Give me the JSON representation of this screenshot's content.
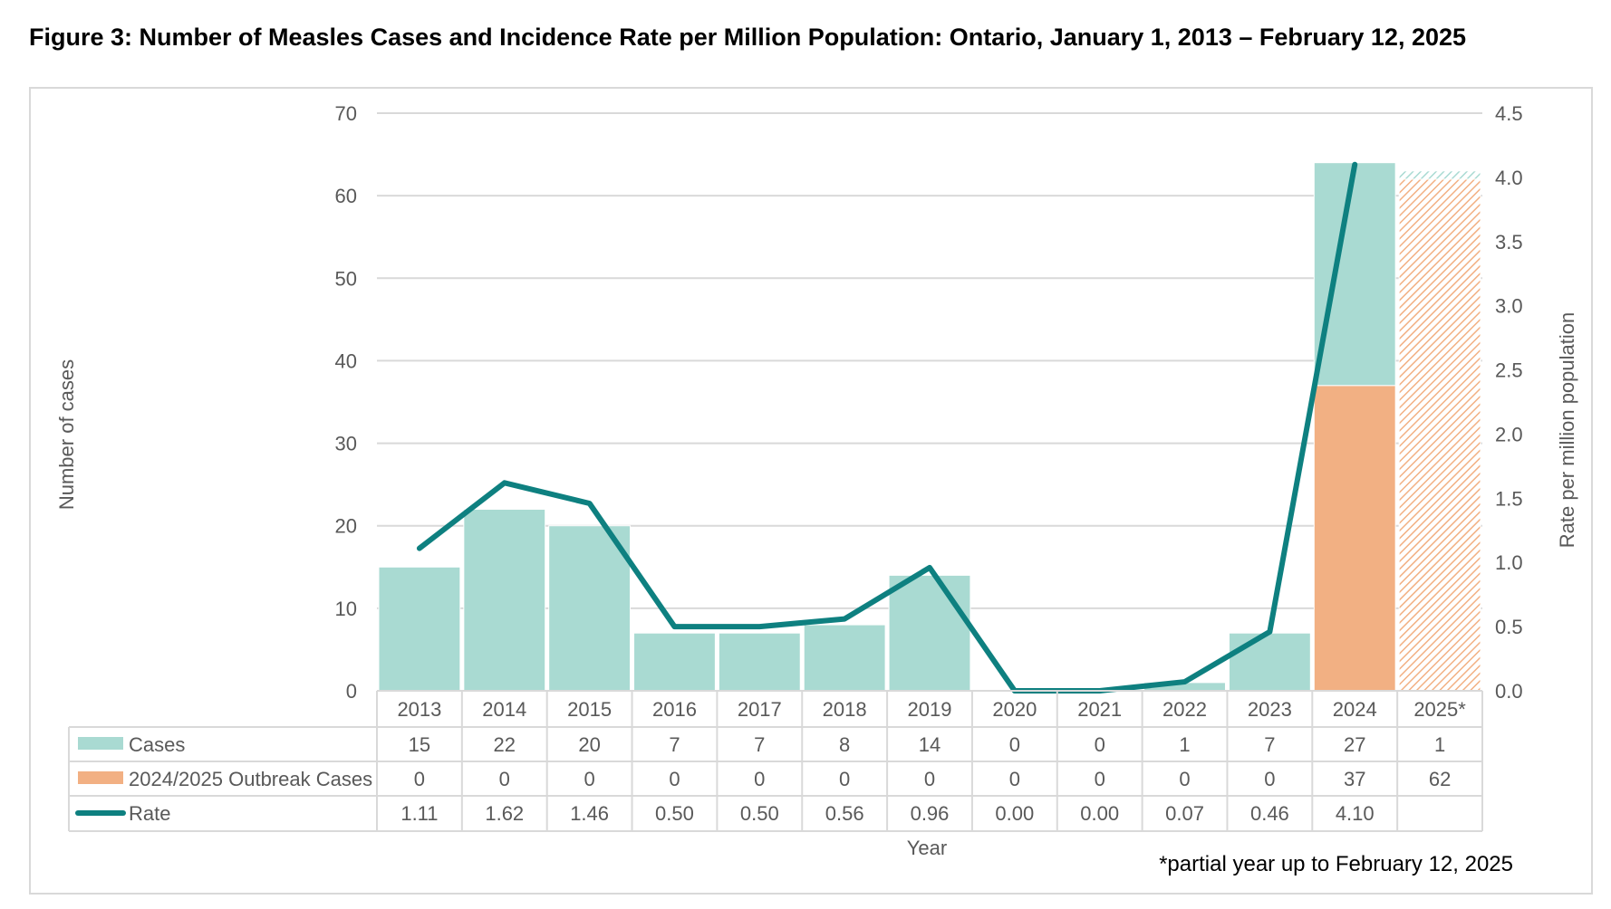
{
  "figure_title": "Figure 3: Number of Measles Cases and Incidence Rate per Million Population: Ontario, January 1, 2013 – February 12, 2025",
  "footnote": "*partial year up to February 12, 2025",
  "colors": {
    "cases": "#a9dad2",
    "outbreak": "#f2b083",
    "rate": "#0e8080",
    "grid": "#d9d9d9",
    "axis_text": "#595959"
  },
  "chart_data": {
    "type": "bar",
    "stacked": true,
    "categories": [
      "2013",
      "2014",
      "2015",
      "2016",
      "2017",
      "2018",
      "2019",
      "2020",
      "2021",
      "2022",
      "2023",
      "2024",
      "2025*"
    ],
    "series": [
      {
        "name": "Cases",
        "type": "bar",
        "axis": "left",
        "values": [
          15,
          22,
          20,
          7,
          7,
          8,
          14,
          0,
          0,
          1,
          7,
          27,
          1
        ]
      },
      {
        "name": "2024/2025 Outbreak Cases",
        "type": "bar",
        "axis": "left",
        "values": [
          0,
          0,
          0,
          0,
          0,
          0,
          0,
          0,
          0,
          0,
          0,
          37,
          62
        ]
      },
      {
        "name": "Rate",
        "type": "line",
        "axis": "right",
        "values": [
          1.11,
          1.62,
          1.46,
          0.5,
          0.5,
          0.56,
          0.96,
          0.0,
          0.0,
          0.07,
          0.46,
          4.1,
          null
        ]
      }
    ],
    "table_values": {
      "Cases": [
        "15",
        "22",
        "20",
        "7",
        "7",
        "8",
        "14",
        "0",
        "0",
        "1",
        "7",
        "27",
        "1"
      ],
      "2024/2025 Outbreak Cases": [
        "0",
        "0",
        "0",
        "0",
        "0",
        "0",
        "0",
        "0",
        "0",
        "0",
        "0",
        "37",
        "62"
      ],
      "Rate": [
        "1.11",
        "1.62",
        "1.46",
        "0.50",
        "0.50",
        "0.56",
        "0.96",
        "0.00",
        "0.00",
        "0.07",
        "0.46",
        "4.10",
        ""
      ]
    },
    "xlabel": "Year",
    "ylabel": "Number of cases",
    "y2label": "Rate per million population",
    "ylim": [
      0,
      70
    ],
    "yticks": [
      "0",
      "10",
      "20",
      "30",
      "40",
      "50",
      "60",
      "70"
    ],
    "y2lim": [
      0,
      4.5
    ],
    "y2ticks": [
      "0.0",
      "0.5",
      "1.0",
      "1.5",
      "2.0",
      "2.5",
      "3.0",
      "3.5",
      "4.0",
      "4.5"
    ],
    "grid": true,
    "legend": "data table",
    "partial_year_category": "2025*"
  }
}
